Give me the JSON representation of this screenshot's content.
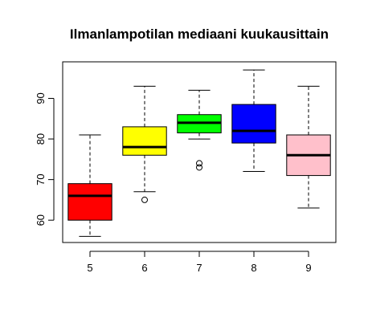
{
  "chart_data": {
    "type": "boxplot",
    "title": "Ilmanlampotilan mediaani kuukausittain",
    "xlabel": "",
    "ylabel": "",
    "categories": [
      "5",
      "6",
      "7",
      "8",
      "9"
    ],
    "ylim": [
      54.5,
      99
    ],
    "yticks": [
      "60",
      "70",
      "80",
      "90"
    ],
    "grid": false,
    "boxes": [
      {
        "category": "5",
        "color": "#ff0000",
        "whisker_low": 56,
        "q1": 60,
        "median": 66,
        "q3": 69,
        "whisker_high": 81,
        "outliers": []
      },
      {
        "category": "6",
        "color": "#ffff00",
        "whisker_low": 67,
        "q1": 76,
        "median": 78,
        "q3": 83,
        "whisker_high": 93,
        "outliers": [
          65
        ]
      },
      {
        "category": "7",
        "color": "#00ff00",
        "whisker_low": 80,
        "q1": 81.5,
        "median": 84,
        "q3": 86,
        "whisker_high": 92,
        "outliers": [
          73,
          74
        ]
      },
      {
        "category": "8",
        "color": "#0000ff",
        "whisker_low": 72,
        "q1": 79,
        "median": 82,
        "q3": 88.5,
        "whisker_high": 97,
        "outliers": []
      },
      {
        "category": "9",
        "color": "#ffc0cb",
        "whisker_low": 63,
        "q1": 71,
        "median": 76,
        "q3": 81,
        "whisker_high": 93,
        "outliers": []
      }
    ]
  }
}
